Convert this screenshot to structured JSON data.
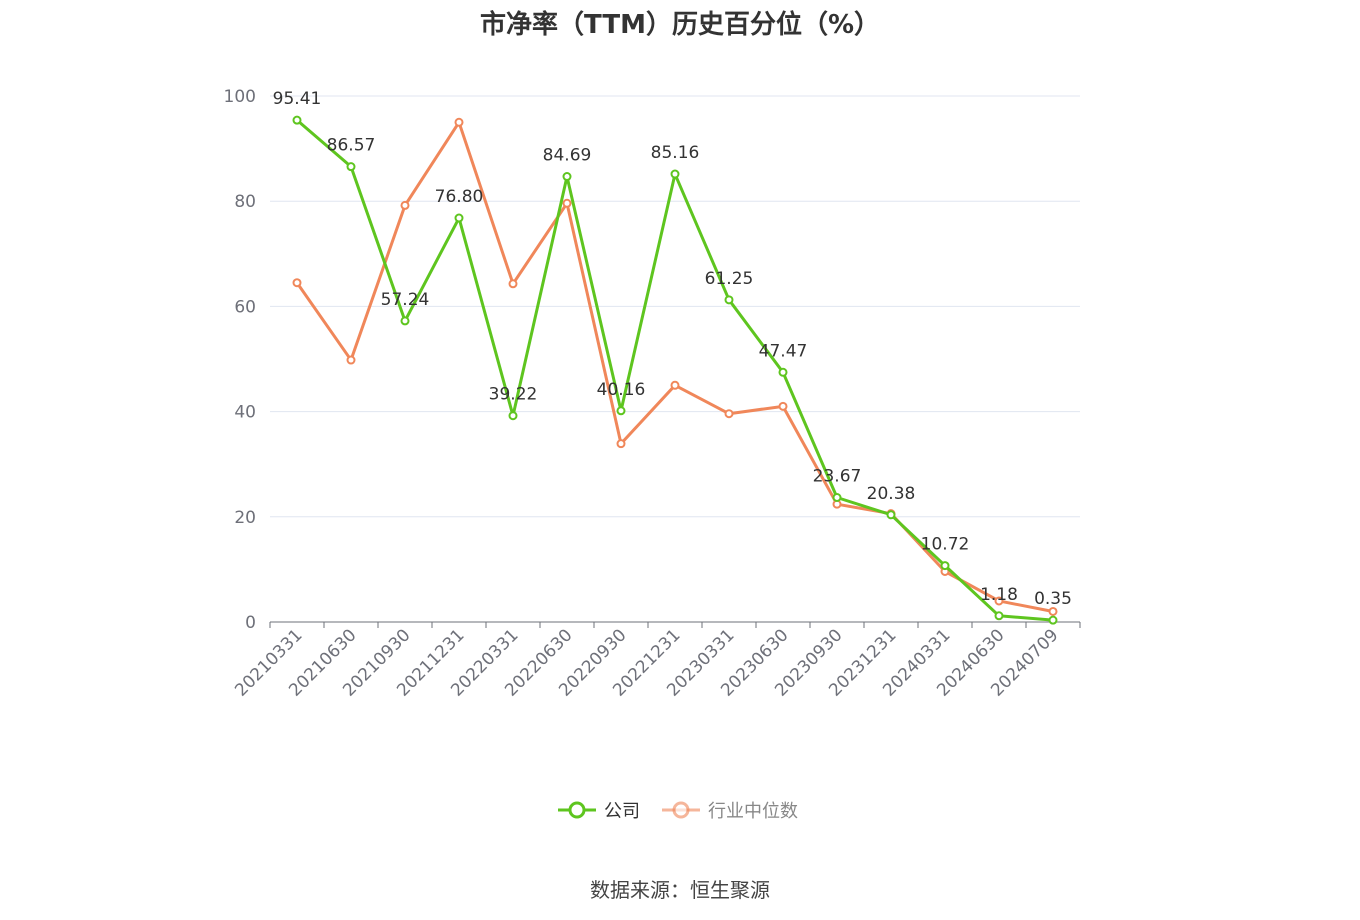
{
  "title": "市净率（TTM）历史百分位（%）",
  "source": "数据来源：恒生聚源",
  "colors": {
    "company": "#5ec51f",
    "industry": "#f0875a",
    "grid": "#e0e6f1",
    "axis": "#6e7079"
  },
  "chart_data": {
    "type": "line",
    "title": "市净率（TTM）历史百分位（%）",
    "categories": [
      "20210331",
      "20210630",
      "20210930",
      "20211231",
      "20220331",
      "20220630",
      "20220930",
      "20221231",
      "20230331",
      "20230630",
      "20230930",
      "20231231",
      "20240331",
      "20240630",
      "20240709"
    ],
    "ylim": [
      0,
      100
    ],
    "yticks": [
      0,
      20,
      40,
      60,
      80,
      100
    ],
    "grid": true,
    "legend": "bottom-center",
    "series": [
      {
        "name": "公司",
        "color": "#5ec51f",
        "labels_shown": true,
        "values": [
          95.41,
          86.57,
          57.24,
          76.8,
          39.22,
          84.69,
          40.16,
          85.16,
          61.25,
          47.47,
          23.67,
          20.38,
          10.72,
          1.18,
          0.35
        ],
        "value_labels": [
          "95.41",
          "86.57",
          "57.24",
          "76.80",
          "39.22",
          "84.69",
          "40.16",
          "85.16",
          "61.25",
          "47.47",
          "23.67",
          "20.38",
          "10.72",
          "1.18",
          "0.35"
        ]
      },
      {
        "name": "行业中位数",
        "color": "#f0875a",
        "labels_shown": false,
        "values": [
          64.5,
          49.8,
          79.2,
          95.0,
          64.3,
          79.6,
          33.9,
          45.0,
          39.6,
          41.0,
          22.4,
          20.6,
          9.6,
          4.0,
          2.0
        ]
      }
    ]
  }
}
